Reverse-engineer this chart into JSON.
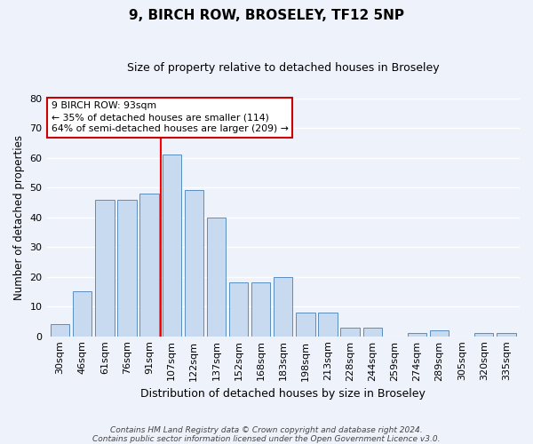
{
  "title1": "9, BIRCH ROW, BROSELEY, TF12 5NP",
  "title2": "Size of property relative to detached houses in Broseley",
  "xlabel": "Distribution of detached houses by size in Broseley",
  "ylabel": "Number of detached properties",
  "categories": [
    "30sqm",
    "46sqm",
    "61sqm",
    "76sqm",
    "91sqm",
    "107sqm",
    "122sqm",
    "137sqm",
    "152sqm",
    "168sqm",
    "183sqm",
    "198sqm",
    "213sqm",
    "228sqm",
    "244sqm",
    "259sqm",
    "274sqm",
    "289sqm",
    "305sqm",
    "320sqm",
    "335sqm"
  ],
  "values": [
    4,
    15,
    46,
    46,
    48,
    61,
    49,
    40,
    18,
    18,
    20,
    8,
    8,
    3,
    3,
    0,
    1,
    2,
    0,
    1,
    1
  ],
  "bar_color": "#c8daf0",
  "bar_edge_color": "#5a8ec0",
  "red_line_x": 4.5,
  "ylim": [
    0,
    80
  ],
  "yticks": [
    0,
    10,
    20,
    30,
    40,
    50,
    60,
    70,
    80
  ],
  "annotation_text": "9 BIRCH ROW: 93sqm\n← 35% of detached houses are smaller (114)\n64% of semi-detached houses are larger (209) →",
  "annotation_box_color": "#ffffff",
  "annotation_border_color": "#cc0000",
  "footnote1": "Contains HM Land Registry data © Crown copyright and database right 2024.",
  "footnote2": "Contains public sector information licensed under the Open Government Licence v3.0.",
  "background_color": "#eef2fb",
  "grid_color": "#ffffff"
}
